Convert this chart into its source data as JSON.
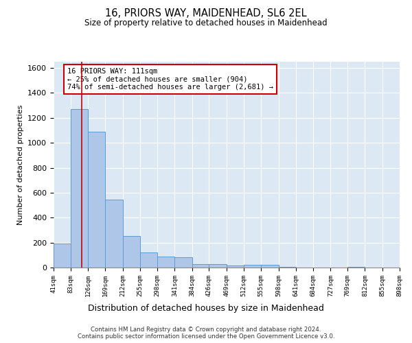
{
  "title": "16, PRIORS WAY, MAIDENHEAD, SL6 2EL",
  "subtitle": "Size of property relative to detached houses in Maidenhead",
  "xlabel": "Distribution of detached houses by size in Maidenhead",
  "ylabel": "Number of detached properties",
  "annotation_line1": "16 PRIORS WAY: 111sqm",
  "annotation_line2": "← 25% of detached houses are smaller (904)",
  "annotation_line3": "74% of semi-detached houses are larger (2,681) →",
  "property_size": 111,
  "bar_edges": [
    41,
    83,
    126,
    169,
    212,
    255,
    298,
    341,
    384,
    426,
    469,
    512,
    555,
    598,
    641,
    684,
    727,
    769,
    812,
    855,
    898
  ],
  "bar_heights": [
    195,
    1270,
    1090,
    545,
    255,
    120,
    90,
    80,
    30,
    25,
    18,
    22,
    20,
    5,
    0,
    0,
    0,
    5,
    0,
    0
  ],
  "bar_color": "#aec6e8",
  "bar_edge_color": "#5b9bd5",
  "property_line_color": "#cc0000",
  "annotation_box_color": "#cc0000",
  "background_color": "#dce9f5",
  "grid_color": "#ffffff",
  "ylim": [
    0,
    1650
  ],
  "yticks": [
    0,
    200,
    400,
    600,
    800,
    1000,
    1200,
    1400,
    1600
  ],
  "footer_line1": "Contains HM Land Registry data © Crown copyright and database right 2024.",
  "footer_line2": "Contains public sector information licensed under the Open Government Licence v3.0."
}
